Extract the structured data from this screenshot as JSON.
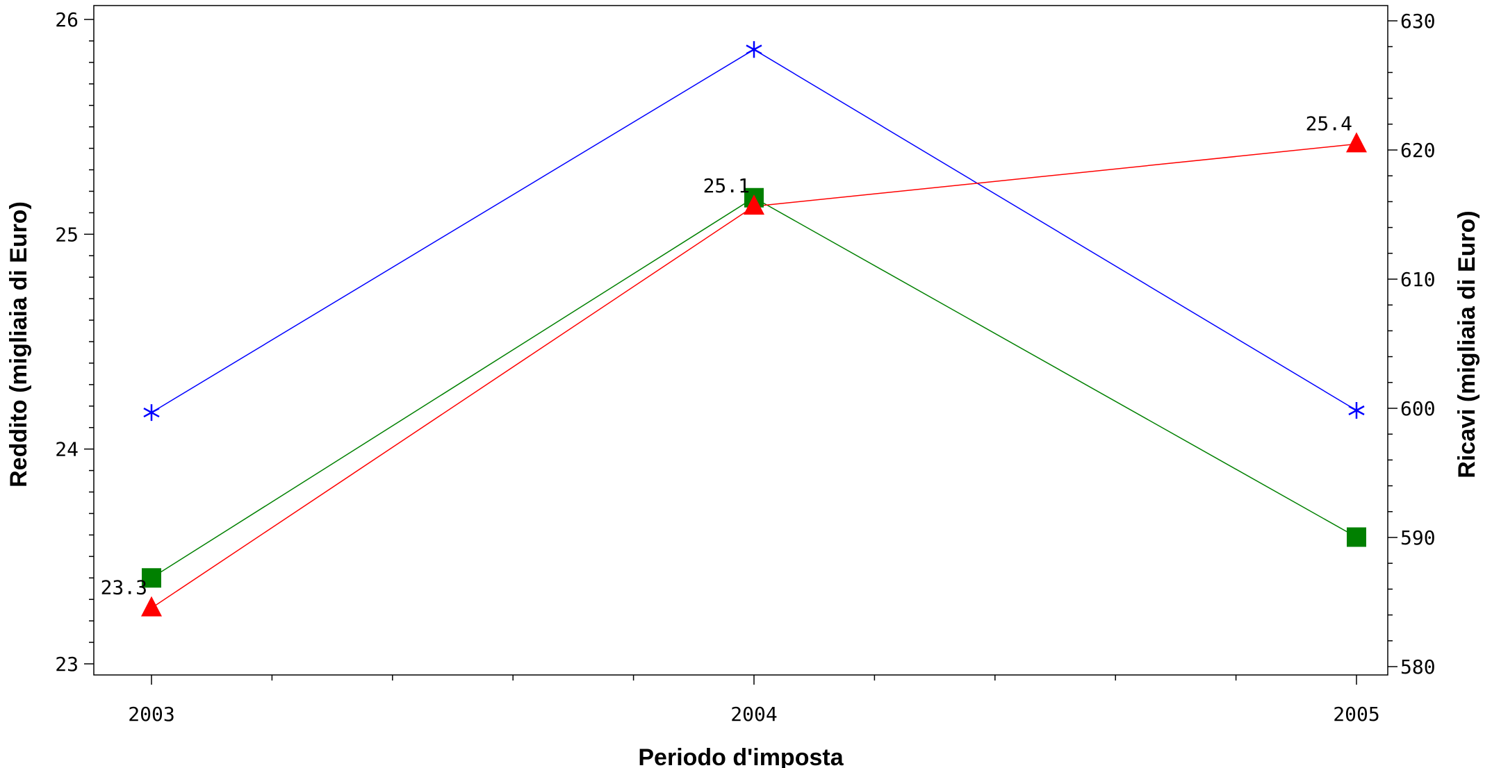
{
  "chart_data": {
    "type": "line",
    "xlabel": "Periodo d'imposta",
    "ylabel_left": "Reddito (migliaia di Euro)",
    "ylabel_right": "Ricavi (migliaia di Euro)",
    "categories": [
      "2003",
      "2004",
      "2005"
    ],
    "ylim_left": [
      23,
      26
    ],
    "ylim_right": [
      580,
      630
    ],
    "yticks_left": [
      "23",
      "24",
      "25",
      "26"
    ],
    "yticks_right": [
      "580",
      "590",
      "600",
      "610",
      "620",
      "630"
    ],
    "grid": false,
    "legend": "none",
    "series": [
      {
        "axis": "left",
        "color": "#0000ff",
        "marker": "asterisk",
        "values": [
          24.17,
          25.86,
          24.18
        ],
        "labels": [
          "",
          "",
          ""
        ]
      },
      {
        "axis": "left",
        "color": "#008000",
        "marker": "square",
        "values": [
          23.4,
          25.17,
          23.59
        ],
        "labels": [
          "",
          "",
          ""
        ]
      },
      {
        "axis": "left",
        "color": "#ff0000",
        "marker": "triangle",
        "values": [
          23.26,
          25.13,
          25.42
        ],
        "labels": [
          "23.3",
          "25.1",
          "25.4"
        ]
      }
    ]
  }
}
